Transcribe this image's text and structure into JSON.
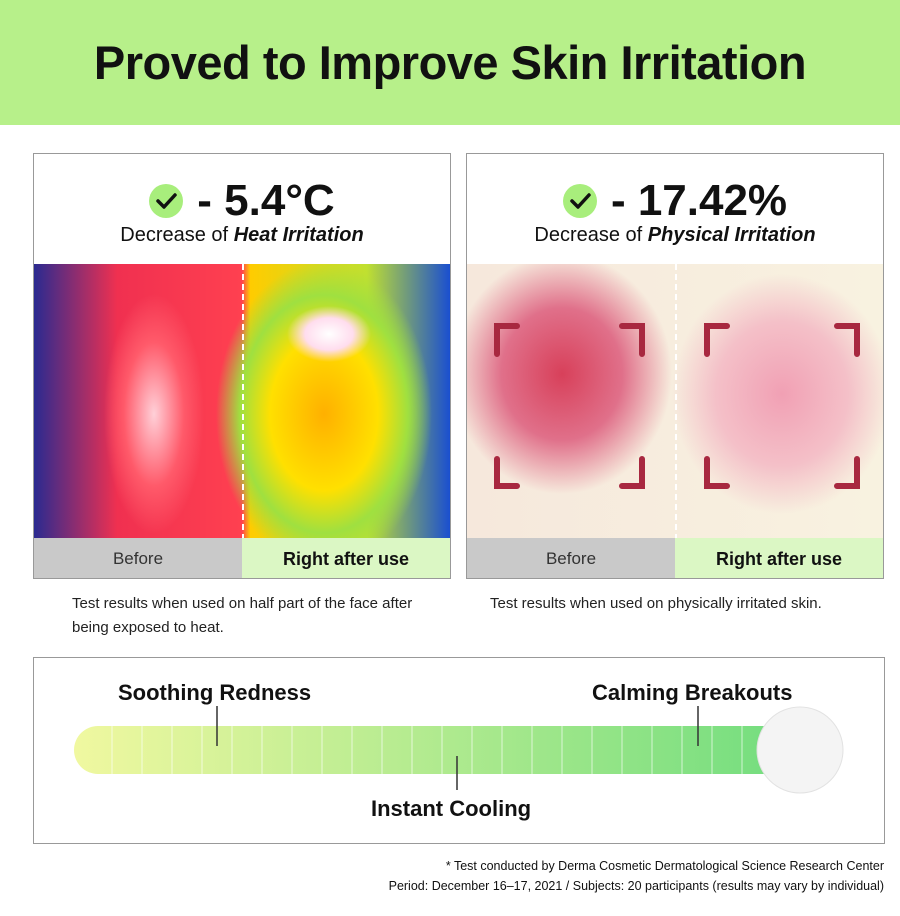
{
  "header": {
    "title": "Proved to Improve Skin Irritation"
  },
  "panels": [
    {
      "stat": "- 5.4°C",
      "desc_prefix": "Decrease of",
      "desc_emphasis": "Heat Irritation",
      "before_label": "Before",
      "after_label": "Right after use",
      "caption": "Test results when used on half part of the face after being exposed to heat."
    },
    {
      "stat": "- 17.42%",
      "desc_prefix": "Decrease of",
      "desc_emphasis": "Physical Irritation",
      "before_label": "Before",
      "after_label": "Right after use",
      "caption": "Test results when used on physically irritated skin."
    }
  ],
  "benefits": [
    "Soothing Redness",
    "Instant Cooling",
    "Calming Breakouts"
  ],
  "footnote": [
    "* Test conducted by Derma Cosmetic Dermatological Science Research Center",
    "Period: December 16–17, 2021 / Subjects: 20 participants (results may vary by individual)"
  ]
}
